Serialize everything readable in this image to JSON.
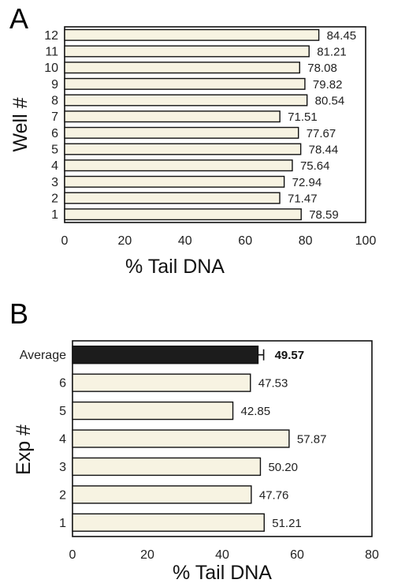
{
  "figure": {
    "panel_a_letter": "A",
    "panel_b_letter": "B"
  },
  "chart_data": [
    {
      "type": "bar",
      "orientation": "horizontal",
      "panel": "A",
      "categories": [
        "12",
        "11",
        "10",
        "9",
        "8",
        "7",
        "6",
        "5",
        "4",
        "3",
        "2",
        "1"
      ],
      "values": [
        84.45,
        81.21,
        78.08,
        79.82,
        80.54,
        71.51,
        77.67,
        78.44,
        75.64,
        72.94,
        71.47,
        78.59
      ],
      "value_labels": [
        "84.45",
        "81.21",
        "78.08",
        "79.82",
        "80.54",
        "71.51",
        "77.67",
        "78.44",
        "75.64",
        "72.94",
        "71.47",
        "78.59"
      ],
      "xlabel": "% Tail DNA",
      "ylabel": "Well #",
      "xlim": [
        0,
        100
      ],
      "xticks": [
        "0",
        "20",
        "40",
        "60",
        "80",
        "100"
      ],
      "bar_color": "#f7f3e2",
      "grid": false
    },
    {
      "type": "bar",
      "orientation": "horizontal",
      "panel": "B",
      "categories": [
        "Average",
        "6",
        "5",
        "4",
        "3",
        "2",
        "1"
      ],
      "values": [
        49.57,
        47.53,
        42.85,
        57.87,
        50.2,
        47.76,
        51.21
      ],
      "value_labels": [
        "49.57",
        "47.53",
        "42.85",
        "57.87",
        "50.20",
        "47.76",
        "51.21"
      ],
      "highlight_index": 0,
      "highlight_color": "#1c1c1c",
      "average_error": 1.5,
      "xlabel": "% Tail DNA",
      "ylabel": "Exp #",
      "xlim": [
        0,
        80
      ],
      "xticks": [
        "0",
        "20",
        "40",
        "60",
        "80"
      ],
      "bar_color": "#f7f3e2",
      "grid": false
    }
  ]
}
